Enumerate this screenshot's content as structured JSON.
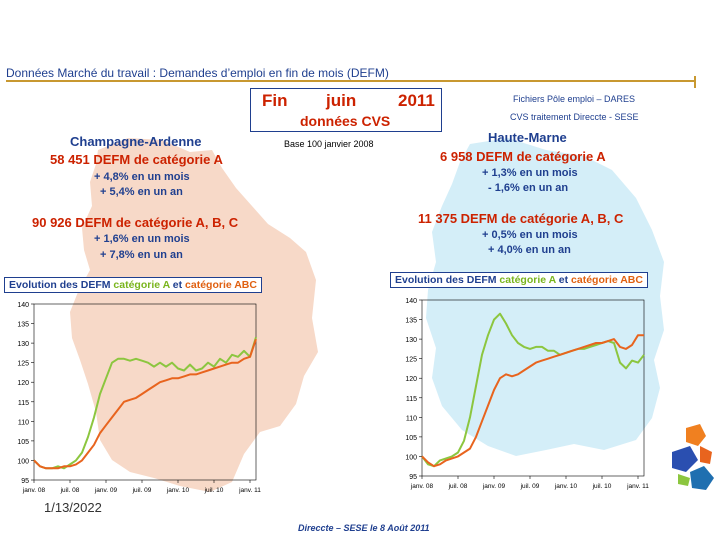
{
  "header": {
    "title": "Données Marché du travail : Demandes d’emploi en fin de mois (DEFM)",
    "fin": "Fin",
    "month": "juin",
    "year": "2011",
    "subtitle": "données CVS",
    "source1": "Fichiers Pôle emploi – DARES",
    "source2": "CVS traitement Direccte - SESE",
    "base": "Base 100 janvier 2008"
  },
  "left": {
    "region": "Champagne-Ardenne",
    "cat_a": "58 451  DEFM de catégorie A",
    "a_month": "+ 4,8% en un mois",
    "a_year": "+ 5,4% en un an",
    "cat_abc": "90 926  DEFM de catégorie A, B, C",
    "abc_month": "+ 1,6% en un mois",
    "abc_year": "+ 7,8% en un an",
    "chart_label": {
      "p1": "Evolution des DEFM ",
      "p2": "catégorie A",
      "p3": " et ",
      "p4": "catégorie ABC"
    }
  },
  "right": {
    "region": "Haute-Marne",
    "cat_a": "6 958  DEFM de catégorie A",
    "a_month": "+ 1,3% en un mois",
    "a_year": "- 1,6% en un an",
    "cat_abc": "11 375  DEFM de catégorie A, B, C",
    "abc_month": "+ 0,5% en un mois",
    "abc_year": "+ 4,0% en un an",
    "chart_label": {
      "p1": "Evolution des DEFM ",
      "p2": "catégorie A",
      "p3": " et ",
      "p4": "catégorie ABC"
    }
  },
  "footer": {
    "date": "1/13/2022",
    "credit": "Direccte – SESE le 8 Août 2011"
  },
  "colors": {
    "cat_a": "#8cc63f",
    "cat_abc": "#e8641e",
    "map_left": "#f7d9c8",
    "map_right": "#d4eef8",
    "navy": "#1f3f8f"
  },
  "chart_data": [
    {
      "type": "line",
      "region": "Champagne-Ardenne",
      "ylim": [
        95,
        140
      ],
      "yticks": [
        "95",
        "100",
        "105",
        "110",
        "115",
        "120",
        "125",
        "130",
        "135",
        "140"
      ],
      "xticks": [
        "janv. 08",
        "juil. 08",
        "janv. 09",
        "juil. 09",
        "janv. 10",
        "juil. 10",
        "janv. 11"
      ],
      "x_index_of_ticks": [
        0,
        6,
        12,
        18,
        24,
        30,
        36
      ],
      "series": [
        {
          "name": "catégorie A",
          "color": "#8cc63f",
          "values": [
            100,
            98.5,
            98,
            98,
            98.5,
            98,
            99,
            100,
            102,
            106,
            111,
            117,
            121,
            125,
            126,
            126,
            125.5,
            126,
            125.5,
            125,
            124,
            125,
            124,
            125,
            123.5,
            123,
            124.5,
            123,
            123.5,
            125,
            124,
            126,
            125,
            127,
            126.5,
            128,
            126.5,
            131.5
          ]
        },
        {
          "name": "catégorie ABC",
          "color": "#e8641e",
          "values": [
            100,
            98.5,
            98,
            98,
            98,
            98.5,
            98.5,
            99,
            100,
            102,
            104,
            107,
            109,
            111,
            113,
            115,
            115.5,
            116,
            117,
            118,
            119,
            120,
            120.5,
            121,
            121,
            121.5,
            122,
            122,
            122.5,
            123,
            123.5,
            124,
            124.5,
            125,
            125,
            126,
            126.5,
            131
          ]
        }
      ]
    },
    {
      "type": "line",
      "region": "Haute-Marne",
      "ylim": [
        95,
        140
      ],
      "yticks": [
        "95",
        "100",
        "105",
        "110",
        "115",
        "120",
        "125",
        "130",
        "135",
        "140"
      ],
      "xticks": [
        "janv. 08",
        "juil. 08",
        "janv. 09",
        "juil. 09",
        "janv. 10",
        "juil. 10",
        "janv. 11"
      ],
      "x_index_of_ticks": [
        0,
        6,
        12,
        18,
        24,
        30,
        36
      ],
      "series": [
        {
          "name": "catégorie A",
          "color": "#8cc63f",
          "values": [
            100,
            98,
            97.5,
            99,
            99.5,
            100,
            101,
            104,
            110,
            118,
            126,
            131,
            135,
            136.5,
            134,
            131,
            129,
            128,
            127.5,
            128,
            128,
            127,
            127,
            126,
            126.5,
            127,
            127.5,
            127.5,
            128,
            128.5,
            129,
            129.5,
            129,
            124,
            122.5,
            124.5,
            124,
            126
          ]
        },
        {
          "name": "catégorie ABC",
          "color": "#e8641e",
          "values": [
            100,
            98.5,
            97.5,
            98,
            99,
            99.5,
            100,
            101,
            102,
            105,
            109,
            113,
            117,
            120,
            121,
            120.5,
            121,
            122,
            123,
            124,
            124.5,
            125,
            125.5,
            126,
            126.5,
            127,
            127.5,
            128,
            128.5,
            129,
            129,
            129.5,
            130,
            128,
            127.5,
            128.5,
            131,
            131
          ]
        }
      ]
    }
  ]
}
